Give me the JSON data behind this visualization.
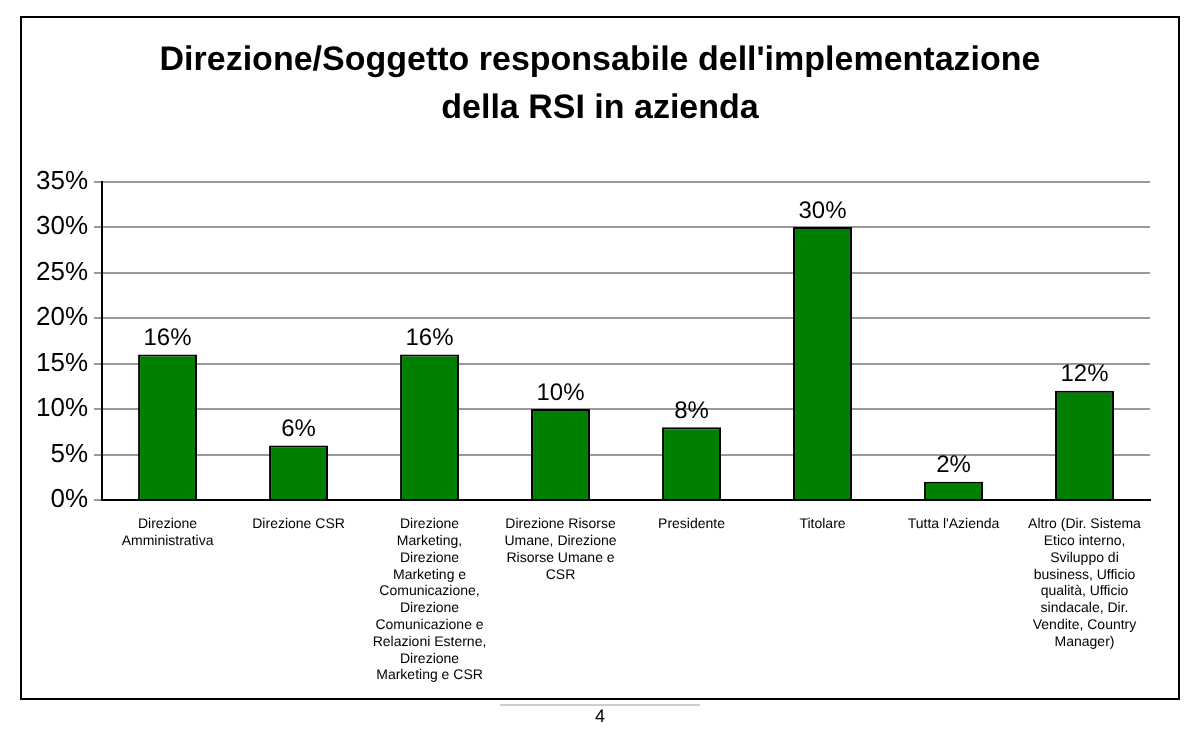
{
  "chart_data": {
    "type": "bar",
    "title": "Direzione/Soggetto responsabile dell'implementazione della RSI in azienda",
    "categories": [
      "Direzione Amministrativa",
      "Direzione CSR",
      "Direzione Marketing, Direzione Marketing e Comunicazione, Direzione Comunicazione e Relazioni Esterne, Direzione Marketing e CSR",
      "Direzione Risorse Umane, Direzione Risorse Umane e CSR",
      "Presidente",
      "Titolare",
      "Tutta l'Azienda",
      "Altro (Dir. Sistema Etico interno, Sviluppo di business, Ufficio qualità, Ufficio sindacale, Dir. Vendite, Country Manager)"
    ],
    "values": [
      16,
      6,
      16,
      10,
      8,
      30,
      2,
      12
    ],
    "value_labels": [
      "16%",
      "6%",
      "16%",
      "10%",
      "8%",
      "30%",
      "2%",
      "12%"
    ],
    "color": "#008000",
    "ylim": [
      0,
      35
    ],
    "yticks": [
      {
        "value": 0,
        "label": "0%"
      },
      {
        "value": 5,
        "label": "5%"
      },
      {
        "value": 10,
        "label": "10%"
      },
      {
        "value": 15,
        "label": "15%"
      },
      {
        "value": 20,
        "label": "20%"
      },
      {
        "value": 25,
        "label": "25%"
      },
      {
        "value": 30,
        "label": "30%"
      },
      {
        "value": 35,
        "label": "35%"
      }
    ],
    "grid": "y",
    "legend": false,
    "annotations": [
      "4"
    ]
  }
}
